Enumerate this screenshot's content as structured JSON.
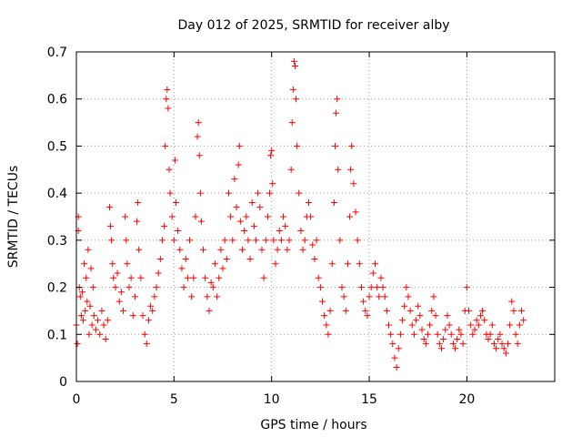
{
  "chart_data": {
    "type": "scatter",
    "title": "Day 012 of 2025, SRMTID for receiver alby",
    "xlabel": "GPS time / hours",
    "ylabel": "SRMTID / TECUs",
    "xlim": [
      0,
      24.5
    ],
    "ylim": [
      0,
      0.7
    ],
    "xticks": [
      0,
      5,
      10,
      15,
      20
    ],
    "xtick_labels": [
      "0",
      "5",
      "10",
      "15",
      "20"
    ],
    "yticks": [
      0,
      0.1,
      0.2,
      0.3,
      0.4,
      0.5,
      0.6,
      0.7
    ],
    "ytick_labels": [
      "0",
      "0.1",
      "0.2",
      "0.3",
      "0.4",
      "0.5",
      "0.6",
      "0.7"
    ],
    "grid": true,
    "marker": "+",
    "series": [
      {
        "name": "SRMTID",
        "color": "#ff0000",
        "points": [
          [
            0.0,
            0.12
          ],
          [
            0.05,
            0.08
          ],
          [
            0.1,
            0.35
          ],
          [
            0.1,
            0.32
          ],
          [
            0.15,
            0.2
          ],
          [
            0.2,
            0.18
          ],
          [
            0.25,
            0.14
          ],
          [
            0.3,
            0.19
          ],
          [
            0.35,
            0.13
          ],
          [
            0.4,
            0.25
          ],
          [
            0.45,
            0.15
          ],
          [
            0.5,
            0.22
          ],
          [
            0.55,
            0.17
          ],
          [
            0.6,
            0.28
          ],
          [
            0.65,
            0.1
          ],
          [
            0.7,
            0.16
          ],
          [
            0.75,
            0.24
          ],
          [
            0.8,
            0.12
          ],
          [
            0.85,
            0.2
          ],
          [
            0.9,
            0.14
          ],
          [
            1.0,
            0.11
          ],
          [
            1.1,
            0.13
          ],
          [
            1.2,
            0.1
          ],
          [
            1.3,
            0.15
          ],
          [
            1.4,
            0.12
          ],
          [
            1.5,
            0.09
          ],
          [
            1.6,
            0.13
          ],
          [
            1.7,
            0.37
          ],
          [
            1.75,
            0.33
          ],
          [
            1.8,
            0.3
          ],
          [
            1.85,
            0.25
          ],
          [
            1.9,
            0.22
          ],
          [
            2.0,
            0.2
          ],
          [
            2.1,
            0.23
          ],
          [
            2.2,
            0.17
          ],
          [
            2.3,
            0.19
          ],
          [
            2.4,
            0.15
          ],
          [
            2.5,
            0.35
          ],
          [
            2.55,
            0.3
          ],
          [
            2.6,
            0.25
          ],
          [
            2.7,
            0.2
          ],
          [
            2.8,
            0.22
          ],
          [
            2.9,
            0.14
          ],
          [
            3.0,
            0.18
          ],
          [
            3.1,
            0.34
          ],
          [
            3.15,
            0.38
          ],
          [
            3.2,
            0.28
          ],
          [
            3.3,
            0.22
          ],
          [
            3.4,
            0.14
          ],
          [
            3.5,
            0.1
          ],
          [
            3.6,
            0.08
          ],
          [
            3.7,
            0.13
          ],
          [
            3.8,
            0.16
          ],
          [
            3.9,
            0.15
          ],
          [
            4.0,
            0.18
          ],
          [
            4.1,
            0.2
          ],
          [
            4.2,
            0.23
          ],
          [
            4.3,
            0.26
          ],
          [
            4.4,
            0.3
          ],
          [
            4.5,
            0.33
          ],
          [
            4.55,
            0.5
          ],
          [
            4.6,
            0.6
          ],
          [
            4.65,
            0.62
          ],
          [
            4.7,
            0.58
          ],
          [
            4.75,
            0.45
          ],
          [
            4.8,
            0.4
          ],
          [
            4.9,
            0.35
          ],
          [
            5.0,
            0.3
          ],
          [
            5.05,
            0.47
          ],
          [
            5.1,
            0.38
          ],
          [
            5.2,
            0.32
          ],
          [
            5.3,
            0.28
          ],
          [
            5.4,
            0.24
          ],
          [
            5.5,
            0.2
          ],
          [
            5.6,
            0.26
          ],
          [
            5.7,
            0.22
          ],
          [
            5.8,
            0.3
          ],
          [
            5.9,
            0.18
          ],
          [
            6.0,
            0.22
          ],
          [
            6.1,
            0.35
          ],
          [
            6.2,
            0.52
          ],
          [
            6.25,
            0.55
          ],
          [
            6.3,
            0.48
          ],
          [
            6.35,
            0.4
          ],
          [
            6.4,
            0.34
          ],
          [
            6.5,
            0.28
          ],
          [
            6.6,
            0.22
          ],
          [
            6.7,
            0.18
          ],
          [
            6.8,
            0.15
          ],
          [
            6.9,
            0.21
          ],
          [
            7.0,
            0.2
          ],
          [
            7.1,
            0.25
          ],
          [
            7.2,
            0.18
          ],
          [
            7.3,
            0.22
          ],
          [
            7.4,
            0.28
          ],
          [
            7.5,
            0.24
          ],
          [
            7.6,
            0.3
          ],
          [
            7.7,
            0.26
          ],
          [
            7.8,
            0.4
          ],
          [
            7.9,
            0.35
          ],
          [
            8.0,
            0.3
          ],
          [
            8.1,
            0.43
          ],
          [
            8.2,
            0.37
          ],
          [
            8.3,
            0.46
          ],
          [
            8.35,
            0.5
          ],
          [
            8.4,
            0.34
          ],
          [
            8.5,
            0.28
          ],
          [
            8.6,
            0.32
          ],
          [
            8.7,
            0.35
          ],
          [
            8.8,
            0.3
          ],
          [
            8.9,
            0.26
          ],
          [
            9.0,
            0.38
          ],
          [
            9.1,
            0.33
          ],
          [
            9.2,
            0.3
          ],
          [
            9.3,
            0.4
          ],
          [
            9.4,
            0.37
          ],
          [
            9.5,
            0.28
          ],
          [
            9.6,
            0.22
          ],
          [
            9.7,
            0.3
          ],
          [
            9.8,
            0.35
          ],
          [
            9.9,
            0.4
          ],
          [
            9.95,
            0.48
          ],
          [
            10.0,
            0.49
          ],
          [
            10.05,
            0.42
          ],
          [
            10.1,
            0.3
          ],
          [
            10.2,
            0.25
          ],
          [
            10.3,
            0.28
          ],
          [
            10.4,
            0.32
          ],
          [
            10.5,
            0.3
          ],
          [
            10.6,
            0.35
          ],
          [
            10.7,
            0.33
          ],
          [
            10.8,
            0.28
          ],
          [
            10.9,
            0.3
          ],
          [
            11.0,
            0.45
          ],
          [
            11.05,
            0.55
          ],
          [
            11.1,
            0.62
          ],
          [
            11.15,
            0.68
          ],
          [
            11.2,
            0.67
          ],
          [
            11.25,
            0.6
          ],
          [
            11.3,
            0.5
          ],
          [
            11.4,
            0.4
          ],
          [
            11.5,
            0.32
          ],
          [
            11.6,
            0.28
          ],
          [
            11.7,
            0.3
          ],
          [
            11.8,
            0.35
          ],
          [
            11.9,
            0.38
          ],
          [
            12.0,
            0.35
          ],
          [
            12.1,
            0.29
          ],
          [
            12.2,
            0.26
          ],
          [
            12.3,
            0.3
          ],
          [
            12.4,
            0.22
          ],
          [
            12.5,
            0.2
          ],
          [
            12.6,
            0.17
          ],
          [
            12.7,
            0.14
          ],
          [
            12.8,
            0.12
          ],
          [
            12.9,
            0.1
          ],
          [
            13.0,
            0.15
          ],
          [
            13.1,
            0.25
          ],
          [
            13.2,
            0.38
          ],
          [
            13.25,
            0.5
          ],
          [
            13.3,
            0.57
          ],
          [
            13.35,
            0.6
          ],
          [
            13.4,
            0.45
          ],
          [
            13.5,
            0.3
          ],
          [
            13.6,
            0.2
          ],
          [
            13.7,
            0.18
          ],
          [
            13.8,
            0.15
          ],
          [
            13.9,
            0.25
          ],
          [
            14.0,
            0.35
          ],
          [
            14.05,
            0.45
          ],
          [
            14.1,
            0.5
          ],
          [
            14.2,
            0.42
          ],
          [
            14.3,
            0.36
          ],
          [
            14.4,
            0.3
          ],
          [
            14.5,
            0.25
          ],
          [
            14.6,
            0.2
          ],
          [
            14.7,
            0.17
          ],
          [
            14.8,
            0.15
          ],
          [
            14.9,
            0.14
          ],
          [
            15.0,
            0.18
          ],
          [
            15.1,
            0.2
          ],
          [
            15.2,
            0.23
          ],
          [
            15.3,
            0.25
          ],
          [
            15.4,
            0.2
          ],
          [
            15.5,
            0.18
          ],
          [
            15.6,
            0.22
          ],
          [
            15.7,
            0.2
          ],
          [
            15.8,
            0.18
          ],
          [
            15.9,
            0.15
          ],
          [
            16.0,
            0.12
          ],
          [
            16.1,
            0.1
          ],
          [
            16.2,
            0.08
          ],
          [
            16.3,
            0.05
          ],
          [
            16.4,
            0.03
          ],
          [
            16.5,
            0.07
          ],
          [
            16.6,
            0.1
          ],
          [
            16.7,
            0.13
          ],
          [
            16.8,
            0.16
          ],
          [
            16.9,
            0.2
          ],
          [
            17.0,
            0.18
          ],
          [
            17.1,
            0.15
          ],
          [
            17.2,
            0.12
          ],
          [
            17.3,
            0.1
          ],
          [
            17.4,
            0.13
          ],
          [
            17.5,
            0.16
          ],
          [
            17.6,
            0.14
          ],
          [
            17.7,
            0.11
          ],
          [
            17.8,
            0.09
          ],
          [
            17.9,
            0.08
          ],
          [
            18.0,
            0.1
          ],
          [
            18.1,
            0.12
          ],
          [
            18.2,
            0.15
          ],
          [
            18.3,
            0.18
          ],
          [
            18.4,
            0.14
          ],
          [
            18.5,
            0.1
          ],
          [
            18.6,
            0.08
          ],
          [
            18.7,
            0.07
          ],
          [
            18.8,
            0.09
          ],
          [
            18.9,
            0.11
          ],
          [
            19.0,
            0.14
          ],
          [
            19.1,
            0.12
          ],
          [
            19.2,
            0.1
          ],
          [
            19.3,
            0.08
          ],
          [
            19.4,
            0.07
          ],
          [
            19.5,
            0.09
          ],
          [
            19.6,
            0.11
          ],
          [
            19.7,
            0.1
          ],
          [
            19.8,
            0.08
          ],
          [
            19.9,
            0.15
          ],
          [
            20.0,
            0.2
          ],
          [
            20.1,
            0.15
          ],
          [
            20.2,
            0.12
          ],
          [
            20.3,
            0.1
          ],
          [
            20.4,
            0.11
          ],
          [
            20.5,
            0.13
          ],
          [
            20.6,
            0.12
          ],
          [
            20.7,
            0.14
          ],
          [
            20.8,
            0.15
          ],
          [
            20.9,
            0.13
          ],
          [
            21.0,
            0.1
          ],
          [
            21.1,
            0.09
          ],
          [
            21.2,
            0.1
          ],
          [
            21.3,
            0.12
          ],
          [
            21.4,
            0.08
          ],
          [
            21.5,
            0.07
          ],
          [
            21.6,
            0.09
          ],
          [
            21.7,
            0.1
          ],
          [
            21.8,
            0.08
          ],
          [
            21.9,
            0.07
          ],
          [
            22.0,
            0.06
          ],
          [
            22.1,
            0.08
          ],
          [
            22.2,
            0.12
          ],
          [
            22.3,
            0.17
          ],
          [
            22.4,
            0.15
          ],
          [
            22.5,
            0.1
          ],
          [
            22.6,
            0.08
          ],
          [
            22.7,
            0.12
          ],
          [
            22.8,
            0.15
          ],
          [
            22.9,
            0.13
          ]
        ]
      }
    ]
  }
}
